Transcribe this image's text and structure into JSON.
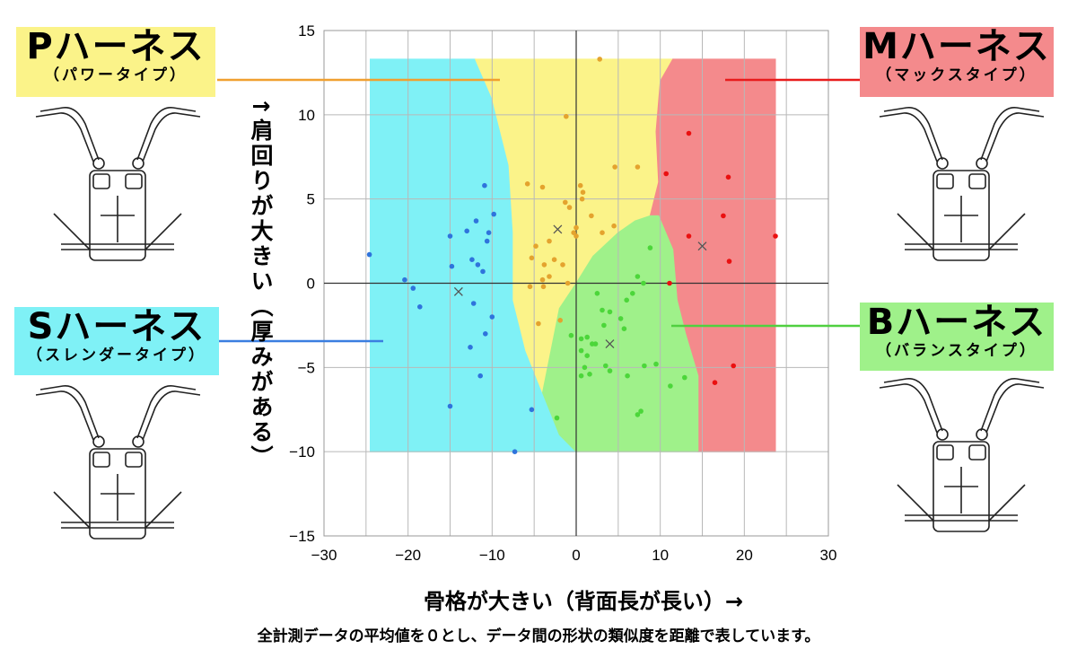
{
  "colors": {
    "region_s": "#7ff1f6",
    "region_p": "#fbf389",
    "region_m": "#f48a8c",
    "region_b": "#9ff18a",
    "point_s": "#2f74dc",
    "point_p": "#e4a32e",
    "point_m": "#ea1010",
    "point_b": "#4cd63a",
    "centroid": "#555555",
    "leader_p": "#f0a030",
    "leader_m": "#e81c1c",
    "leader_s": "#3a7ee0",
    "leader_b": "#50d040"
  },
  "labels": {
    "p": {
      "title": "Pハーネス",
      "subtitle": "（パワータイプ）"
    },
    "m": {
      "title": "Mハーネス",
      "subtitle": "（マックスタイプ）"
    },
    "s": {
      "title": "Sハーネス",
      "subtitle": "（スレンダータイプ）"
    },
    "b": {
      "title": "Bハーネス",
      "subtitle": "（バランスタイプ）"
    }
  },
  "icons": [
    "harness-p-icon",
    "harness-m-icon",
    "harness-s-icon",
    "harness-b-icon"
  ],
  "y_axis_title": "↑肩回りが大きい（厚みがある）",
  "x_axis_title": "骨格が大きい（背面長が長い）→",
  "footnote": "全計測データの平均値を０とし、データ間の形状の類似度を距離で表しています。",
  "chart_data": {
    "type": "scatter",
    "title": "",
    "xlabel": "骨格が大きい（背面長が長い）→",
    "ylabel": "↑肩回りが大きい（厚みがある）",
    "xlim": [
      -30,
      30
    ],
    "ylim": [
      -15,
      15
    ],
    "x_ticks": [
      "−30",
      "−20",
      "−10",
      "0",
      "10",
      "20",
      "30"
    ],
    "y_ticks": [
      "15",
      "10",
      "5",
      "0",
      "−5",
      "−10",
      "−15"
    ],
    "grid": true,
    "regions": [
      {
        "name": "S",
        "polygon": [
          [
            -24.5,
            13.3
          ],
          [
            -12,
            13.3
          ],
          [
            -10,
            11
          ],
          [
            -8,
            7
          ],
          [
            -7.5,
            3
          ],
          [
            -7.5,
            -1
          ],
          [
            -6,
            -4
          ],
          [
            -4,
            -6.5
          ],
          [
            -2,
            -9
          ],
          [
            0,
            -10
          ],
          [
            -24.5,
            -10
          ]
        ]
      },
      {
        "name": "P",
        "polygon": [
          [
            -12,
            13.3
          ],
          [
            11.5,
            13.3
          ],
          [
            10,
            12
          ],
          [
            9.5,
            9
          ],
          [
            9.8,
            6
          ],
          [
            8.8,
            4
          ],
          [
            7,
            3.7
          ],
          [
            5,
            3
          ],
          [
            2,
            1.6
          ],
          [
            0,
            0
          ],
          [
            -2,
            -1.5
          ],
          [
            -4,
            -6.5
          ],
          [
            -6,
            -4
          ],
          [
            -7.5,
            -1
          ],
          [
            -7.5,
            3
          ],
          [
            -8,
            7
          ],
          [
            -10,
            11
          ]
        ]
      },
      {
        "name": "M",
        "polygon": [
          [
            11.5,
            13.3
          ],
          [
            23.7,
            13.3
          ],
          [
            23.7,
            -10
          ],
          [
            14.5,
            -10
          ],
          [
            14.5,
            -5.5
          ],
          [
            13,
            -3
          ],
          [
            12,
            -1
          ],
          [
            11.5,
            2
          ],
          [
            9.8,
            4
          ],
          [
            8.8,
            4
          ],
          [
            9.8,
            6
          ],
          [
            9.5,
            9
          ],
          [
            10,
            12
          ]
        ]
      },
      {
        "name": "B",
        "polygon": [
          [
            8.8,
            4
          ],
          [
            9.8,
            4
          ],
          [
            11.5,
            2
          ],
          [
            12,
            -1
          ],
          [
            13,
            -3
          ],
          [
            14.5,
            -5.5
          ],
          [
            14.5,
            -10
          ],
          [
            0,
            -10
          ],
          [
            -2,
            -9
          ],
          [
            -4,
            -6.5
          ],
          [
            -2,
            -1.5
          ],
          [
            0,
            0
          ],
          [
            2,
            1.6
          ],
          [
            5,
            3
          ],
          [
            7,
            3.7
          ]
        ]
      }
    ],
    "series": [
      {
        "name": "S",
        "points": [
          [
            -24.6,
            1.7
          ],
          [
            -20.4,
            0.2
          ],
          [
            -19.4,
            -0.3
          ],
          [
            -18.6,
            -1.4
          ],
          [
            -15,
            2.8
          ],
          [
            -15,
            -7.3
          ],
          [
            -14.8,
            1.0
          ],
          [
            -13,
            3.1
          ],
          [
            -12.6,
            -3.8
          ],
          [
            -12.4,
            1.4
          ],
          [
            -12.2,
            -1.2
          ],
          [
            -11.9,
            3.7
          ],
          [
            -11.7,
            1.1
          ],
          [
            -11.4,
            -5.5
          ],
          [
            -11.1,
            0.7
          ],
          [
            -10.9,
            5.8
          ],
          [
            -10.8,
            -3.0
          ],
          [
            -10.6,
            2.5
          ],
          [
            -10.4,
            3.0
          ],
          [
            -10,
            -2.0
          ],
          [
            -9.8,
            4.1
          ],
          [
            -5.3,
            -7.5
          ],
          [
            -7.3,
            -10
          ]
        ]
      },
      {
        "name": "P",
        "points": [
          [
            2.8,
            13.3
          ],
          [
            -1.2,
            9.9
          ],
          [
            -5.8,
            5.9
          ],
          [
            -4.0,
            5.7
          ],
          [
            0.5,
            5.8
          ],
          [
            0.8,
            5.4
          ],
          [
            0.7,
            5.0
          ],
          [
            7.3,
            6.9
          ],
          [
            4.6,
            6.9
          ],
          [
            -1.3,
            4.8
          ],
          [
            -0.8,
            4.5
          ],
          [
            -0.3,
            3.0
          ],
          [
            0,
            3.3
          ],
          [
            0,
            2.8
          ],
          [
            1.8,
            4.0
          ],
          [
            3.1,
            3.0
          ],
          [
            4.5,
            3.4
          ],
          [
            -5.3,
            1.5
          ],
          [
            -4.8,
            2.2
          ],
          [
            -3.2,
            2.5
          ],
          [
            -3.8,
            1.1
          ],
          [
            -2.6,
            1.4
          ],
          [
            -1.6,
            1.1
          ],
          [
            -4.0,
            0.2
          ],
          [
            -3.2,
            0.4
          ],
          [
            -1.0,
            0.0
          ],
          [
            -5.5,
            -0.2
          ],
          [
            -3.9,
            -0.2
          ],
          [
            -4.5,
            -2.4
          ],
          [
            -1.9,
            -2.2
          ]
        ]
      },
      {
        "name": "M",
        "points": [
          [
            13.4,
            8.9
          ],
          [
            10.7,
            6.5
          ],
          [
            18.1,
            6.3
          ],
          [
            17.5,
            4.0
          ],
          [
            13.4,
            2.8
          ],
          [
            23.7,
            2.8
          ],
          [
            18.2,
            1.3
          ],
          [
            11.1,
            0.0
          ],
          [
            18.7,
            -4.9
          ],
          [
            16.5,
            -5.9
          ]
        ]
      },
      {
        "name": "B",
        "points": [
          [
            8.8,
            2.1
          ],
          [
            7.3,
            0.4
          ],
          [
            8.0,
            0.0
          ],
          [
            6.7,
            -0.6
          ],
          [
            2.5,
            -0.6
          ],
          [
            6.0,
            -1.0
          ],
          [
            3.1,
            -1.6
          ],
          [
            4.0,
            -1.7
          ],
          [
            5.3,
            -2.1
          ],
          [
            5.7,
            -2.7
          ],
          [
            3.3,
            -2.5
          ],
          [
            2.3,
            -3.6
          ],
          [
            -0.6,
            -3.1
          ],
          [
            0.6,
            -3.3
          ],
          [
            1.3,
            -3.2
          ],
          [
            1.9,
            -3.6
          ],
          [
            0.6,
            -4.0
          ],
          [
            1.3,
            -4.3
          ],
          [
            1.0,
            -5.0
          ],
          [
            3.5,
            -4.9
          ],
          [
            4.0,
            -5.2
          ],
          [
            1.6,
            -5.4
          ],
          [
            0.6,
            -5.5
          ],
          [
            6.1,
            -5.5
          ],
          [
            8.1,
            -4.9
          ],
          [
            9.5,
            -4.8
          ],
          [
            12.9,
            -5.6
          ],
          [
            11.2,
            -6.1
          ],
          [
            7.7,
            -7.6
          ],
          [
            7.3,
            -7.8
          ],
          [
            -2.3,
            -8.0
          ]
        ]
      }
    ],
    "centroids": [
      {
        "name": "S",
        "x": -14,
        "y": -0.5
      },
      {
        "name": "P",
        "x": -2.2,
        "y": 3.2
      },
      {
        "name": "M",
        "x": 15,
        "y": 2.2
      },
      {
        "name": "B",
        "x": 4,
        "y": -3.6
      }
    ]
  }
}
